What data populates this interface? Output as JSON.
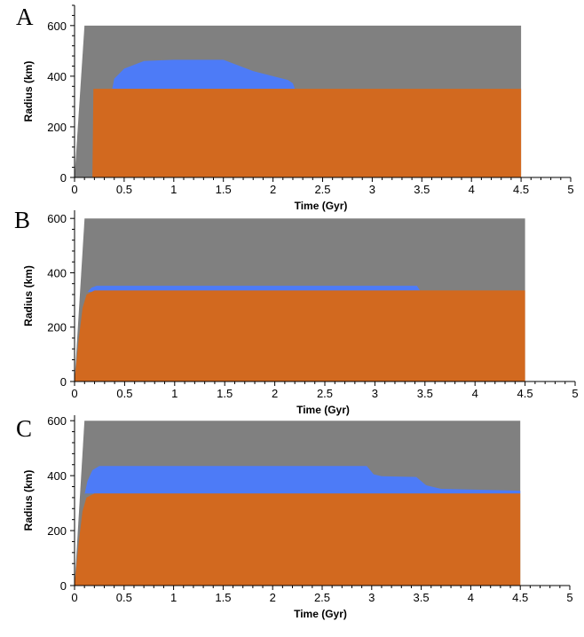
{
  "chart_data": [
    {
      "type": "area",
      "panel_label": "A",
      "xlabel": "Time (Gyr)",
      "ylabel": "Radius (km)",
      "xlim": [
        0,
        5
      ],
      "ylim": [
        0,
        680
      ],
      "x_ticks": [
        0,
        0.5,
        1,
        1.5,
        2,
        2.5,
        3,
        3.5,
        4,
        4.5,
        5
      ],
      "x_tick_labels": [
        "0",
        "0.5",
        "1",
        "1.5",
        "2",
        "2.5",
        "3",
        "3.5",
        "4",
        "4.5",
        "5"
      ],
      "y_ticks": [
        0,
        200,
        400,
        600
      ],
      "y_tick_labels": [
        "0",
        "200",
        "400",
        "600"
      ],
      "grid": false,
      "colors": {
        "body": "#808080",
        "liquid": "#4d7bf7",
        "core": "#d2691f"
      },
      "series": [
        {
          "layer": "body",
          "points": [
            [
              0.0,
              0
            ],
            [
              0.1,
              600
            ],
            [
              4.5,
              600
            ],
            [
              4.5,
              0
            ]
          ]
        },
        {
          "layer": "liquid",
          "points": [
            [
              0.38,
              350
            ],
            [
              0.4,
              390
            ],
            [
              0.5,
              430
            ],
            [
              0.7,
              460
            ],
            [
              1.0,
              465
            ],
            [
              1.5,
              465
            ],
            [
              1.6,
              450
            ],
            [
              1.8,
              420
            ],
            [
              2.0,
              400
            ],
            [
              2.15,
              385
            ],
            [
              2.2,
              372
            ],
            [
              2.22,
              350
            ]
          ]
        },
        {
          "layer": "core",
          "points": [
            [
              0.18,
              0
            ],
            [
              0.19,
              350
            ],
            [
              4.5,
              350
            ],
            [
              4.5,
              0
            ]
          ]
        }
      ]
    },
    {
      "type": "area",
      "panel_label": "B",
      "xlabel": "Time (Gyr)",
      "ylabel": "Radius (km)",
      "xlim": [
        0,
        5
      ],
      "ylim": [
        0,
        630
      ],
      "x_ticks": [
        0,
        0.5,
        1,
        1.5,
        2,
        2.5,
        3,
        3.5,
        4,
        4.5,
        5
      ],
      "x_tick_labels": [
        "0",
        "0.5",
        "1",
        "1.5",
        "2",
        "2.5",
        "3",
        "3.5",
        "4",
        "4.5",
        "5"
      ],
      "y_ticks": [
        0,
        200,
        400,
        600
      ],
      "y_tick_labels": [
        "0",
        "200",
        "400",
        "600"
      ],
      "grid": false,
      "colors": {
        "body": "#808080",
        "liquid": "#4d7bf7",
        "core": "#d2691f"
      },
      "series": [
        {
          "layer": "body",
          "points": [
            [
              0.0,
              0
            ],
            [
              0.1,
              600
            ],
            [
              4.5,
              600
            ],
            [
              4.5,
              0
            ]
          ]
        },
        {
          "layer": "liquid",
          "points": [
            [
              0.13,
              330
            ],
            [
              0.17,
              345
            ],
            [
              0.22,
              352
            ],
            [
              3.42,
              352
            ],
            [
              3.45,
              335
            ]
          ]
        },
        {
          "layer": "core",
          "points": [
            [
              0.0,
              0
            ],
            [
              0.04,
              150
            ],
            [
              0.08,
              270
            ],
            [
              0.12,
              320
            ],
            [
              0.2,
              335
            ],
            [
              4.5,
              335
            ],
            [
              4.5,
              0
            ]
          ]
        }
      ]
    },
    {
      "type": "area",
      "panel_label": "C",
      "xlabel": "Time (Gyr)",
      "ylabel": "Radius (km)",
      "xlim": [
        0,
        5
      ],
      "ylim": [
        0,
        620
      ],
      "x_ticks": [
        0,
        0.5,
        1,
        1.5,
        2,
        2.5,
        3,
        3.5,
        4,
        4.5,
        5
      ],
      "x_tick_labels": [
        "0",
        "0.5",
        "1",
        "1.5",
        "2",
        "2.5",
        "3",
        "3.5",
        "4",
        "4.5",
        "5"
      ],
      "y_ticks": [
        0,
        200,
        400,
        600
      ],
      "y_tick_labels": [
        "0",
        "200",
        "400",
        "600"
      ],
      "grid": false,
      "colors": {
        "body": "#808080",
        "liquid": "#4d7bf7",
        "core": "#d2691f"
      },
      "series": [
        {
          "layer": "body",
          "points": [
            [
              0.0,
              0
            ],
            [
              0.1,
              600
            ],
            [
              4.5,
              600
            ],
            [
              4.5,
              0
            ]
          ]
        },
        {
          "layer": "liquid",
          "points": [
            [
              0.1,
              330
            ],
            [
              0.13,
              380
            ],
            [
              0.18,
              420
            ],
            [
              0.25,
              435
            ],
            [
              2.95,
              435
            ],
            [
              3.02,
              405
            ],
            [
              3.1,
              398
            ],
            [
              3.45,
              395
            ],
            [
              3.55,
              365
            ],
            [
              3.7,
              352
            ],
            [
              4.5,
              345
            ],
            [
              4.5,
              335
            ],
            [
              0.1,
              335
            ]
          ]
        },
        {
          "layer": "core",
          "points": [
            [
              0.0,
              0
            ],
            [
              0.04,
              150
            ],
            [
              0.08,
              270
            ],
            [
              0.12,
              320
            ],
            [
              0.2,
              335
            ],
            [
              4.5,
              335
            ],
            [
              4.5,
              0
            ]
          ]
        }
      ]
    }
  ]
}
